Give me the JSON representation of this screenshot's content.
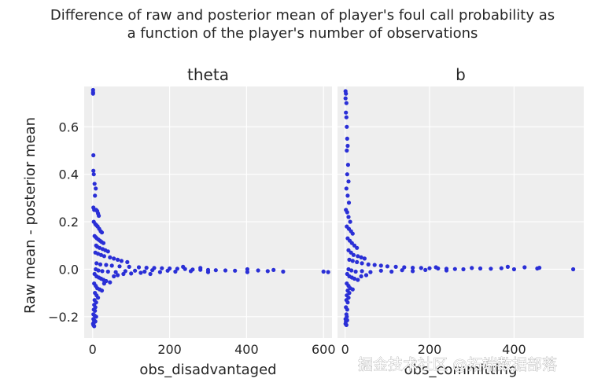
{
  "figure": {
    "title_lines": [
      "Difference of raw and posterior mean of player's foul call probability as",
      "a function of the player's number of observations"
    ],
    "watermark": "掘金技术社区 @拓端数据部落",
    "ylabel": "Raw mean - posterior mean"
  },
  "colors": {
    "panel_bg": "#eeeeee",
    "grid": "#ffffff",
    "points": "#2a2fd6"
  },
  "chart_data": [
    {
      "type": "scatter",
      "title": "theta",
      "xlabel": "obs_disadvantaged",
      "ylabel": "Raw mean - posterior mean",
      "xlim": [
        -22,
        622
      ],
      "ylim": [
        -0.29,
        0.77
      ],
      "xticks": [
        0,
        200,
        400,
        600
      ],
      "yticks": [
        -0.2,
        0.0,
        0.2,
        0.4,
        0.6
      ],
      "grid": true,
      "points": [
        [
          1,
          0.755
        ],
        [
          1,
          0.745
        ],
        [
          1,
          0.74
        ],
        [
          2,
          0.48
        ],
        [
          2,
          0.415
        ],
        [
          3,
          0.4
        ],
        [
          5,
          0.36
        ],
        [
          8,
          0.34
        ],
        [
          6,
          0.31
        ],
        [
          2,
          0.26
        ],
        [
          4,
          0.25
        ],
        [
          9,
          0.25
        ],
        [
          12,
          0.245
        ],
        [
          14,
          0.235
        ],
        [
          16,
          0.225
        ],
        [
          3,
          0.2
        ],
        [
          7,
          0.19
        ],
        [
          10,
          0.185
        ],
        [
          13,
          0.18
        ],
        [
          17,
          0.17
        ],
        [
          21,
          0.16
        ],
        [
          24,
          0.155
        ],
        [
          5,
          0.14
        ],
        [
          8,
          0.135
        ],
        [
          11,
          0.13
        ],
        [
          15,
          0.125
        ],
        [
          19,
          0.12
        ],
        [
          23,
          0.115
        ],
        [
          28,
          0.11
        ],
        [
          9,
          0.1
        ],
        [
          12,
          0.095
        ],
        [
          18,
          0.09
        ],
        [
          26,
          0.085
        ],
        [
          33,
          0.08
        ],
        [
          40,
          0.075
        ],
        [
          7,
          0.07
        ],
        [
          14,
          0.065
        ],
        [
          22,
          0.06
        ],
        [
          30,
          0.055
        ],
        [
          45,
          0.05
        ],
        [
          55,
          0.045
        ],
        [
          65,
          0.04
        ],
        [
          75,
          0.035
        ],
        [
          90,
          0.03
        ],
        [
          10,
          0.025
        ],
        [
          20,
          0.02
        ],
        [
          35,
          0.018
        ],
        [
          50,
          0.015
        ],
        [
          70,
          0.012
        ],
        [
          95,
          0.01
        ],
        [
          120,
          0.008
        ],
        [
          140,
          0.006
        ],
        [
          160,
          0.005
        ],
        [
          180,
          0.004
        ],
        [
          200,
          0.003
        ],
        [
          220,
          0.002
        ],
        [
          240,
          0.001
        ],
        [
          260,
          -0.001
        ],
        [
          280,
          -0.002
        ],
        [
          300,
          -0.003
        ],
        [
          320,
          -0.004
        ],
        [
          345,
          -0.005
        ],
        [
          370,
          -0.006
        ],
        [
          402,
          -0.012
        ],
        [
          402,
          0.0
        ],
        [
          430,
          -0.005
        ],
        [
          455,
          -0.008
        ],
        [
          470,
          -0.003
        ],
        [
          495,
          -0.01
        ],
        [
          600,
          -0.01
        ],
        [
          612,
          -0.012
        ],
        [
          8,
          0.0
        ],
        [
          15,
          -0.005
        ],
        [
          25,
          -0.008
        ],
        [
          40,
          -0.01
        ],
        [
          60,
          -0.012
        ],
        [
          85,
          -0.008
        ],
        [
          110,
          -0.006
        ],
        [
          135,
          -0.01
        ],
        [
          155,
          -0.004
        ],
        [
          175,
          -0.012
        ],
        [
          195,
          -0.006
        ],
        [
          215,
          -0.01
        ],
        [
          235,
          0.01
        ],
        [
          255,
          -0.008
        ],
        [
          280,
          0.005
        ],
        [
          300,
          -0.012
        ],
        [
          5,
          -0.02
        ],
        [
          10,
          -0.03
        ],
        [
          16,
          -0.035
        ],
        [
          22,
          -0.04
        ],
        [
          28,
          -0.045
        ],
        [
          35,
          -0.05
        ],
        [
          45,
          -0.055
        ],
        [
          55,
          -0.03
        ],
        [
          65,
          -0.025
        ],
        [
          80,
          -0.02
        ],
        [
          100,
          -0.018
        ],
        [
          125,
          -0.015
        ],
        [
          150,
          -0.02
        ],
        [
          4,
          -0.06
        ],
        [
          8,
          -0.07
        ],
        [
          12,
          -0.08
        ],
        [
          18,
          -0.085
        ],
        [
          24,
          -0.09
        ],
        [
          30,
          -0.06
        ],
        [
          6,
          -0.1
        ],
        [
          10,
          -0.11
        ],
        [
          14,
          -0.12
        ],
        [
          5,
          -0.13
        ],
        [
          9,
          -0.14
        ],
        [
          4,
          -0.15
        ],
        [
          7,
          -0.16
        ],
        [
          3,
          -0.17
        ],
        [
          6,
          -0.175
        ],
        [
          2,
          -0.19
        ],
        [
          5,
          -0.195
        ],
        [
          9,
          -0.2
        ],
        [
          2,
          -0.21
        ],
        [
          4,
          -0.215
        ],
        [
          7,
          -0.22
        ],
        [
          3,
          -0.225
        ],
        [
          1,
          -0.23
        ],
        [
          2,
          -0.235
        ],
        [
          4,
          -0.24
        ]
      ]
    },
    {
      "type": "scatter",
      "title": "b",
      "xlabel": "obs_committing",
      "xlim": [
        -18,
        565
      ],
      "ylim": [
        -0.29,
        0.77
      ],
      "xticks": [
        0,
        200,
        400
      ],
      "yticks": [
        -0.2,
        0.0,
        0.2,
        0.4,
        0.6
      ],
      "grid": true,
      "points": [
        [
          1,
          0.75
        ],
        [
          2,
          0.74
        ],
        [
          1,
          0.72
        ],
        [
          3,
          0.7
        ],
        [
          2,
          0.66
        ],
        [
          3,
          0.64
        ],
        [
          4,
          0.6
        ],
        [
          5,
          0.55
        ],
        [
          6,
          0.52
        ],
        [
          4,
          0.5
        ],
        [
          7,
          0.44
        ],
        [
          5,
          0.4
        ],
        [
          8,
          0.37
        ],
        [
          3,
          0.34
        ],
        [
          6,
          0.31
        ],
        [
          9,
          0.28
        ],
        [
          2,
          0.25
        ],
        [
          5,
          0.24
        ],
        [
          8,
          0.22
        ],
        [
          12,
          0.2
        ],
        [
          4,
          0.18
        ],
        [
          9,
          0.17
        ],
        [
          14,
          0.16
        ],
        [
          18,
          0.15
        ],
        [
          6,
          0.13
        ],
        [
          11,
          0.12
        ],
        [
          16,
          0.11
        ],
        [
          22,
          0.1
        ],
        [
          28,
          0.09
        ],
        [
          8,
          0.08
        ],
        [
          14,
          0.07
        ],
        [
          20,
          0.06
        ],
        [
          30,
          0.055
        ],
        [
          38,
          0.05
        ],
        [
          46,
          0.045
        ],
        [
          10,
          0.04
        ],
        [
          18,
          0.035
        ],
        [
          28,
          0.03
        ],
        [
          40,
          0.025
        ],
        [
          55,
          0.02
        ],
        [
          70,
          0.018
        ],
        [
          85,
          0.015
        ],
        [
          100,
          0.012
        ],
        [
          120,
          0.01
        ],
        [
          140,
          0.008
        ],
        [
          160,
          0.006
        ],
        [
          180,
          0.005
        ],
        [
          200,
          0.004
        ],
        [
          220,
          0.003
        ],
        [
          240,
          0.002
        ],
        [
          260,
          0.001
        ],
        [
          280,
          0.0
        ],
        [
          300,
          0.005
        ],
        [
          320,
          0.003
        ],
        [
          345,
          0.002
        ],
        [
          370,
          0.004
        ],
        [
          385,
          0.01
        ],
        [
          400,
          0.0
        ],
        [
          425,
          0.008
        ],
        [
          455,
          0.003
        ],
        [
          460,
          0.006
        ],
        [
          540,
          0.0
        ],
        [
          8,
          0.0
        ],
        [
          15,
          -0.005
        ],
        [
          25,
          -0.01
        ],
        [
          40,
          -0.008
        ],
        [
          60,
          -0.012
        ],
        [
          85,
          -0.006
        ],
        [
          110,
          -0.01
        ],
        [
          135,
          -0.004
        ],
        [
          160,
          -0.008
        ],
        [
          190,
          -0.003
        ],
        [
          215,
          0.008
        ],
        [
          240,
          -0.005
        ],
        [
          5,
          -0.02
        ],
        [
          10,
          -0.03
        ],
        [
          16,
          -0.035
        ],
        [
          22,
          -0.04
        ],
        [
          30,
          -0.045
        ],
        [
          38,
          -0.03
        ],
        [
          50,
          -0.025
        ],
        [
          4,
          -0.06
        ],
        [
          8,
          -0.07
        ],
        [
          12,
          -0.08
        ],
        [
          18,
          -0.085
        ],
        [
          6,
          -0.09
        ],
        [
          10,
          -0.1
        ],
        [
          4,
          -0.11
        ],
        [
          8,
          -0.12
        ],
        [
          3,
          -0.13
        ],
        [
          6,
          -0.14
        ],
        [
          2,
          -0.16
        ],
        [
          5,
          -0.17
        ],
        [
          3,
          -0.19
        ],
        [
          1,
          -0.21
        ],
        [
          4,
          -0.2
        ],
        [
          2,
          -0.22
        ],
        [
          5,
          -0.215
        ],
        [
          1,
          -0.23
        ],
        [
          3,
          -0.235
        ]
      ]
    }
  ]
}
